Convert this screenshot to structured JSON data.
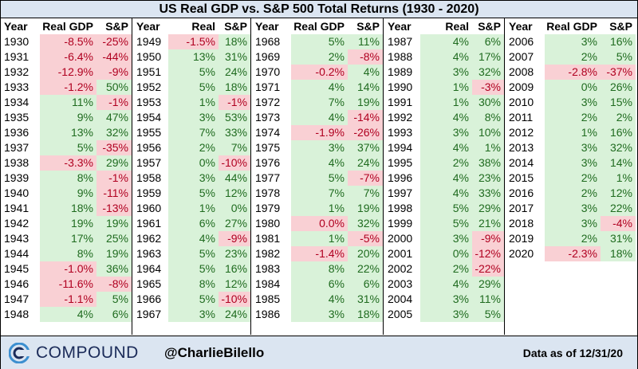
{
  "title": "US Real GDP vs. S&P 500 Total Returns (1930 - 2020)",
  "headers": {
    "year": "Year",
    "gdp": "Real GDP",
    "sp": "S&P"
  },
  "colors": {
    "positive_bg": "#d9f2d9",
    "positive_text": "#1f6b1f",
    "negative_bg": "#f9d0d4",
    "negative_text": "#b00020",
    "header_bg": "#dbe5f1"
  },
  "footer": {
    "brand": "COMPOUND",
    "handle": "@CharlieBilello",
    "as_of": "Data as of 12/31/20",
    "logo_icon": "compound-logo-icon"
  },
  "chart_data": {
    "type": "table",
    "title": "US Real GDP vs. S&P 500 Total Returns (1930 - 2020)",
    "columns": [
      "Year",
      "Real GDP",
      "S&P"
    ],
    "rows": [
      [
        "1930",
        "-8.5%",
        "-25%"
      ],
      [
        "1931",
        "-6.4%",
        "-44%"
      ],
      [
        "1932",
        "-12.9%",
        "-9%"
      ],
      [
        "1933",
        "-1.2%",
        "50%"
      ],
      [
        "1934",
        "11%",
        "-1%"
      ],
      [
        "1935",
        "9%",
        "47%"
      ],
      [
        "1936",
        "13%",
        "32%"
      ],
      [
        "1937",
        "5%",
        "-35%"
      ],
      [
        "1938",
        "-3.3%",
        "29%"
      ],
      [
        "1939",
        "8%",
        "-1%"
      ],
      [
        "1940",
        "9%",
        "-11%"
      ],
      [
        "1941",
        "18%",
        "-13%"
      ],
      [
        "1942",
        "19%",
        "19%"
      ],
      [
        "1943",
        "17%",
        "25%"
      ],
      [
        "1944",
        "8%",
        "19%"
      ],
      [
        "1945",
        "-1.0%",
        "36%"
      ],
      [
        "1946",
        "-11.6%",
        "-8%"
      ],
      [
        "1947",
        "-1.1%",
        "5%"
      ],
      [
        "1948",
        "4%",
        "6%"
      ],
      [
        "1949",
        "-1.5%",
        "18%"
      ],
      [
        "1950",
        "13%",
        "31%"
      ],
      [
        "1951",
        "5%",
        "24%"
      ],
      [
        "1952",
        "5%",
        "18%"
      ],
      [
        "1953",
        "1%",
        "-1%"
      ],
      [
        "1954",
        "3%",
        "53%"
      ],
      [
        "1955",
        "7%",
        "33%"
      ],
      [
        "1956",
        "2%",
        "7%"
      ],
      [
        "1957",
        "0%",
        "-10%"
      ],
      [
        "1958",
        "3%",
        "44%"
      ],
      [
        "1959",
        "5%",
        "12%"
      ],
      [
        "1960",
        "1%",
        "0%"
      ],
      [
        "1961",
        "6%",
        "27%"
      ],
      [
        "1962",
        "4%",
        "-9%"
      ],
      [
        "1963",
        "5%",
        "23%"
      ],
      [
        "1964",
        "5%",
        "16%"
      ],
      [
        "1965",
        "8%",
        "12%"
      ],
      [
        "1966",
        "5%",
        "-10%"
      ],
      [
        "1967",
        "3%",
        "24%"
      ],
      [
        "1968",
        "5%",
        "11%"
      ],
      [
        "1969",
        "2%",
        "-8%"
      ],
      [
        "1970",
        "-0.2%",
        "4%"
      ],
      [
        "1971",
        "4%",
        "14%"
      ],
      [
        "1972",
        "7%",
        "19%"
      ],
      [
        "1973",
        "4%",
        "-14%"
      ],
      [
        "1974",
        "-1.9%",
        "-26%"
      ],
      [
        "1975",
        "3%",
        "37%"
      ],
      [
        "1976",
        "4%",
        "24%"
      ],
      [
        "1977",
        "5%",
        "-7%"
      ],
      [
        "1978",
        "7%",
        "7%"
      ],
      [
        "1979",
        "1%",
        "19%"
      ],
      [
        "1980",
        "0.0%",
        "32%"
      ],
      [
        "1981",
        "1%",
        "-5%"
      ],
      [
        "1982",
        "-1.4%",
        "20%"
      ],
      [
        "1983",
        "8%",
        "22%"
      ],
      [
        "1984",
        "6%",
        "6%"
      ],
      [
        "1985",
        "4%",
        "31%"
      ],
      [
        "1986",
        "3%",
        "18%"
      ],
      [
        "1987",
        "4%",
        "6%"
      ],
      [
        "1988",
        "4%",
        "17%"
      ],
      [
        "1989",
        "3%",
        "32%"
      ],
      [
        "1990",
        "1%",
        "-3%"
      ],
      [
        "1991",
        "1%",
        "30%"
      ],
      [
        "1992",
        "4%",
        "8%"
      ],
      [
        "1993",
        "3%",
        "10%"
      ],
      [
        "1994",
        "4%",
        "1%"
      ],
      [
        "1995",
        "2%",
        "38%"
      ],
      [
        "1996",
        "4%",
        "23%"
      ],
      [
        "1997",
        "4%",
        "33%"
      ],
      [
        "1998",
        "5%",
        "29%"
      ],
      [
        "1999",
        "5%",
        "21%"
      ],
      [
        "2000",
        "3%",
        "-9%"
      ],
      [
        "2001",
        "0%",
        "-12%"
      ],
      [
        "2002",
        "2%",
        "-22%"
      ],
      [
        "2003",
        "4%",
        "29%"
      ],
      [
        "2004",
        "3%",
        "11%"
      ],
      [
        "2005",
        "3%",
        "5%"
      ],
      [
        "2006",
        "3%",
        "16%"
      ],
      [
        "2007",
        "2%",
        "5%"
      ],
      [
        "2008",
        "-2.8%",
        "-37%"
      ],
      [
        "2009",
        "0%",
        "26%"
      ],
      [
        "2010",
        "3%",
        "15%"
      ],
      [
        "2011",
        "2%",
        "2%"
      ],
      [
        "2012",
        "1%",
        "16%"
      ],
      [
        "2013",
        "3%",
        "32%"
      ],
      [
        "2014",
        "3%",
        "14%"
      ],
      [
        "2015",
        "2%",
        "1%"
      ],
      [
        "2016",
        "2%",
        "12%"
      ],
      [
        "2017",
        "3%",
        "22%"
      ],
      [
        "2018",
        "3%",
        "-4%"
      ],
      [
        "2019",
        "2%",
        "31%"
      ],
      [
        "2020",
        "-2.3%",
        "18%"
      ]
    ]
  }
}
